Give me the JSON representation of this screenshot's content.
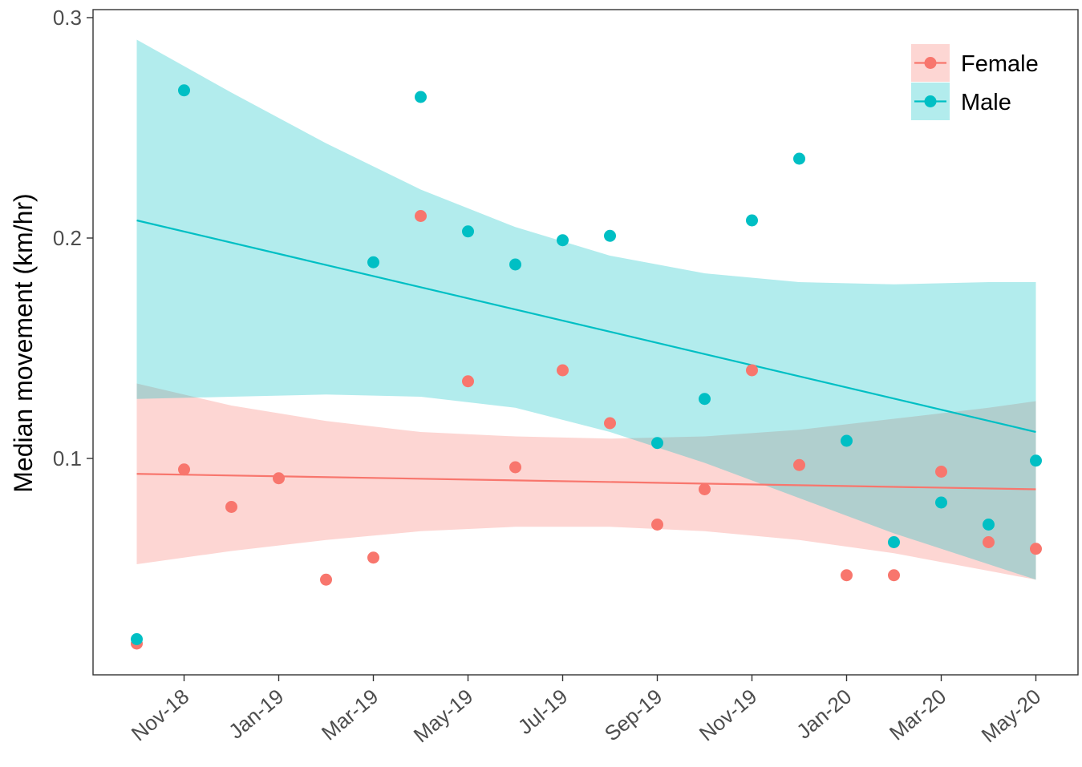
{
  "chart_data": {
    "type": "scatter",
    "title": "",
    "xlabel": "",
    "ylabel": "Median movement (km/hr)",
    "x_ticks": [
      "Nov-18",
      "Jan-19",
      "Mar-19",
      "May-19",
      "Jul-19",
      "Sep-19",
      "Nov-19",
      "Jan-20",
      "Mar-20",
      "May-20"
    ],
    "y_ticks": [
      "0.1",
      "0.2",
      "0.3"
    ],
    "x_range": [
      "Oct-18",
      "May-20"
    ],
    "ylim": [
      0.01,
      0.3
    ],
    "grid": false,
    "legend_position": "top-right",
    "series": [
      {
        "name": "Female",
        "color": "#F8766D",
        "band_color": "#F8766D",
        "x": [
          "Oct-18",
          "Nov-18",
          "Dec-18",
          "Jan-19",
          "Feb-19",
          "Mar-19",
          "Apr-19",
          "May-19",
          "Jun-19",
          "Jul-19",
          "Aug-19",
          "Sep-19",
          "Oct-19",
          "Nov-19",
          "Dec-19",
          "Jan-20",
          "Feb-20",
          "Mar-20",
          "Apr-20",
          "May-20"
        ],
        "values": [
          0.016,
          0.095,
          0.078,
          0.091,
          0.045,
          0.055,
          0.21,
          0.135,
          0.096,
          0.14,
          0.116,
          0.07,
          0.086,
          0.14,
          0.097,
          0.047,
          0.047,
          0.094,
          0.062,
          0.059
        ],
        "trend": {
          "start": 0.093,
          "end": 0.086
        },
        "ci_band": {
          "x": [
            "Oct-18",
            "Dec-18",
            "Feb-19",
            "Apr-19",
            "Jun-19",
            "Aug-19",
            "Oct-19",
            "Dec-19",
            "Feb-20",
            "Apr-20",
            "May-20"
          ],
          "lower": [
            0.052,
            0.058,
            0.063,
            0.067,
            0.069,
            0.069,
            0.067,
            0.063,
            0.057,
            0.049,
            0.045
          ],
          "upper": [
            0.134,
            0.124,
            0.117,
            0.112,
            0.11,
            0.109,
            0.11,
            0.113,
            0.118,
            0.123,
            0.126
          ]
        }
      },
      {
        "name": "Male",
        "color": "#00BFC4",
        "band_color": "#00BFC4",
        "x": [
          "Oct-18",
          "Nov-18",
          "Mar-19",
          "Apr-19",
          "May-19",
          "Jun-19",
          "Jul-19",
          "Aug-19",
          "Sep-19",
          "Oct-19",
          "Nov-19",
          "Dec-19",
          "Jan-20",
          "Feb-20",
          "Mar-20",
          "Apr-20",
          "May-20"
        ],
        "values": [
          0.018,
          0.267,
          0.189,
          0.264,
          0.203,
          0.188,
          0.199,
          0.201,
          0.107,
          0.127,
          0.208,
          0.236,
          0.108,
          0.062,
          0.08,
          0.07,
          0.099
        ],
        "trend": {
          "start": 0.208,
          "end": 0.112
        },
        "ci_band": {
          "x": [
            "Oct-18",
            "Dec-18",
            "Feb-19",
            "Apr-19",
            "Jun-19",
            "Aug-19",
            "Oct-19",
            "Dec-19",
            "Feb-20",
            "Apr-20",
            "May-20"
          ],
          "lower": [
            0.127,
            0.128,
            0.129,
            0.128,
            0.123,
            0.112,
            0.098,
            0.082,
            0.066,
            0.052,
            0.045
          ],
          "upper": [
            0.29,
            0.266,
            0.243,
            0.222,
            0.205,
            0.192,
            0.184,
            0.18,
            0.179,
            0.18,
            0.18
          ]
        }
      }
    ]
  }
}
